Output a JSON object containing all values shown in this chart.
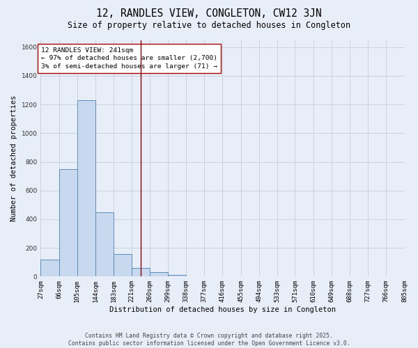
{
  "title1": "12, RANDLES VIEW, CONGLETON, CW12 3JN",
  "title2": "Size of property relative to detached houses in Congleton",
  "xlabel": "Distribution of detached houses by size in Congleton",
  "ylabel": "Number of detached properties",
  "bin_edges": [
    27,
    66,
    105,
    144,
    183,
    221,
    260,
    299,
    338,
    377,
    416,
    455,
    494,
    533,
    571,
    610,
    649,
    688,
    727,
    766,
    805
  ],
  "bar_heights": [
    120,
    750,
    1230,
    450,
    155,
    60,
    30,
    10,
    0,
    0,
    0,
    0,
    0,
    0,
    0,
    0,
    0,
    0,
    0,
    0
  ],
  "bar_color": "#c8d9ef",
  "bar_edge_color": "#5b8db8",
  "property_size": 241,
  "redline_color": "#880000",
  "annotation_text": "12 RANDLES VIEW: 241sqm\n← 97% of detached houses are smaller (2,700)\n3% of semi-detached houses are larger (71) →",
  "annotation_box_color": "#ffffff",
  "annotation_box_edge_color": "#aa0000",
  "ylim": [
    0,
    1650
  ],
  "yticks": [
    0,
    200,
    400,
    600,
    800,
    1000,
    1200,
    1400,
    1600
  ],
  "bg_color": "#e8eef8",
  "grid_color": "#c8ccd8",
  "footer1": "Contains HM Land Registry data © Crown copyright and database right 2025.",
  "footer2": "Contains public sector information licensed under the Open Government Licence v3.0.",
  "title_fontsize": 10.5,
  "subtitle_fontsize": 8.5,
  "axis_label_fontsize": 7.5,
  "tick_fontsize": 6.5,
  "annotation_fontsize": 6.8,
  "footer_fontsize": 5.8
}
